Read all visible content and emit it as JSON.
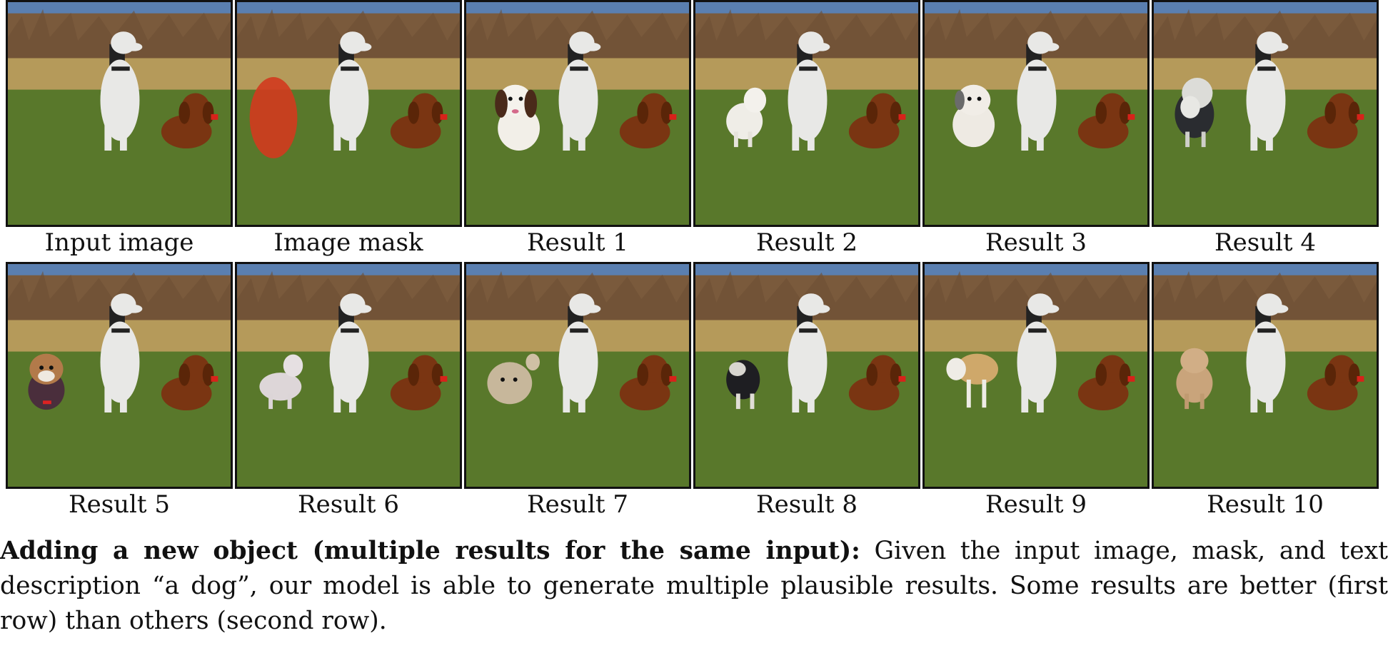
{
  "figure": {
    "row1": [
      {
        "label": "Input image",
        "inserted": "none"
      },
      {
        "label": "Image mask",
        "inserted": "mask"
      },
      {
        "label": "Result 1",
        "inserted": "spaniel"
      },
      {
        "label": "Result 2",
        "inserted": "white-small"
      },
      {
        "label": "Result 3",
        "inserted": "white-shaggy"
      },
      {
        "label": "Result 4",
        "inserted": "black-white"
      }
    ],
    "row2": [
      {
        "label": "Result 5",
        "inserted": "terrier"
      },
      {
        "label": "Result 6",
        "inserted": "pale-short"
      },
      {
        "label": "Result 7",
        "inserted": "fluffy-tan"
      },
      {
        "label": "Result 8",
        "inserted": "black-scruffy"
      },
      {
        "label": "Result 9",
        "inserted": "tan-white"
      },
      {
        "label": "Result 10",
        "inserted": "golden-doodle"
      }
    ]
  },
  "caption": {
    "bold": "Adding a new object (multiple results for the same input):",
    "text": " Given the input image, mask, and text description “a dog”, our model is able to generate multiple plausible results. Some results are better (first row) than others (second row)."
  },
  "colors": {
    "sky": "#5a7fb0",
    "trees": "#7a5a3c",
    "dry_grass": "#b59a5a",
    "green_grass": "#5e7d2e",
    "greyhound": "#e8e8e6",
    "dachshund": "#7a3512",
    "mask_red": "#d23a1e"
  }
}
